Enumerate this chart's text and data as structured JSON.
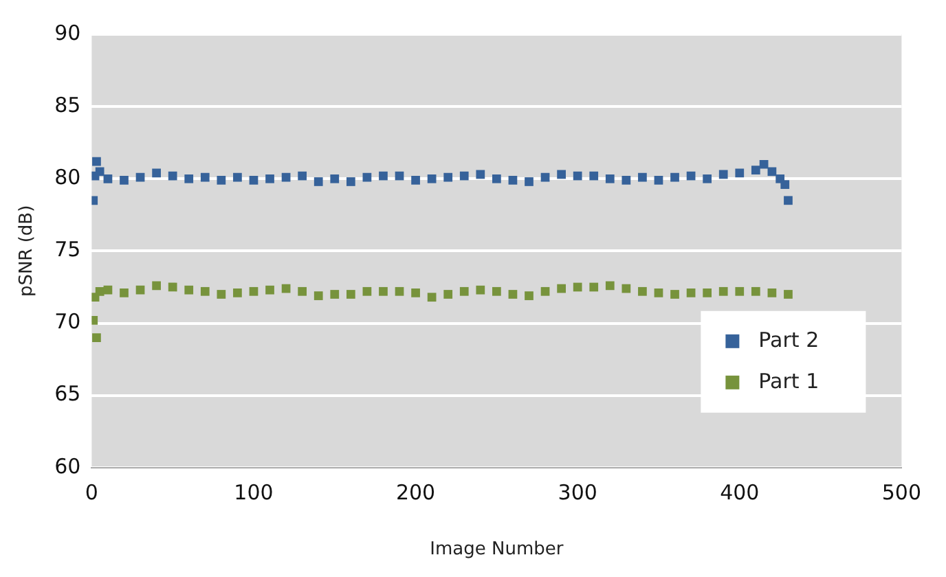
{
  "chart_data": {
    "type": "scatter",
    "xlabel": "Image Number",
    "ylabel": "pSNR (dB)",
    "xlim": [
      0,
      500
    ],
    "xticks": [
      0,
      100,
      200,
      300,
      400,
      500
    ],
    "ylim": [
      60,
      90
    ],
    "yticks": [
      60,
      65,
      70,
      75,
      80,
      85,
      90
    ],
    "grid": "y",
    "legend": "bottom right",
    "marker": "square",
    "series": [
      {
        "name": "Part 2",
        "color": "#36629a",
        "x": [
          1,
          2,
          3,
          5,
          10,
          20,
          30,
          40,
          50,
          60,
          70,
          80,
          90,
          100,
          110,
          120,
          130,
          140,
          150,
          160,
          170,
          180,
          190,
          200,
          210,
          220,
          230,
          240,
          250,
          260,
          270,
          280,
          290,
          300,
          310,
          320,
          330,
          340,
          350,
          360,
          370,
          380,
          390,
          400,
          410,
          415,
          420,
          425,
          428,
          430
        ],
        "values": [
          78.5,
          80.2,
          81.2,
          80.5,
          80.0,
          79.9,
          80.1,
          80.4,
          80.2,
          80.0,
          80.1,
          79.9,
          80.1,
          79.9,
          80.0,
          80.1,
          80.2,
          79.8,
          80.0,
          79.8,
          80.1,
          80.2,
          80.2,
          79.9,
          80.0,
          80.1,
          80.2,
          80.3,
          80.0,
          79.9,
          79.8,
          80.1,
          80.3,
          80.2,
          80.2,
          80.0,
          79.9,
          80.1,
          79.9,
          80.1,
          80.2,
          80.0,
          80.3,
          80.4,
          80.6,
          81.0,
          80.5,
          80.0,
          79.6,
          78.5
        ]
      },
      {
        "name": "Part 1",
        "color": "#77933c",
        "x": [
          1,
          2,
          3,
          5,
          10,
          20,
          30,
          40,
          50,
          60,
          70,
          80,
          90,
          100,
          110,
          120,
          130,
          140,
          150,
          160,
          170,
          180,
          190,
          200,
          210,
          220,
          230,
          240,
          250,
          260,
          270,
          280,
          290,
          300,
          310,
          320,
          330,
          340,
          350,
          360,
          370,
          380,
          390,
          400,
          410,
          420,
          430
        ],
        "values": [
          70.2,
          71.8,
          69.0,
          72.2,
          72.3,
          72.1,
          72.3,
          72.6,
          72.5,
          72.3,
          72.2,
          72.0,
          72.1,
          72.2,
          72.3,
          72.4,
          72.2,
          71.9,
          72.0,
          72.0,
          72.2,
          72.2,
          72.2,
          72.1,
          71.8,
          72.0,
          72.2,
          72.3,
          72.2,
          72.0,
          71.9,
          72.2,
          72.4,
          72.5,
          72.5,
          72.6,
          72.4,
          72.2,
          72.1,
          72.0,
          72.1,
          72.1,
          72.2,
          72.2,
          72.2,
          72.1,
          72.0
        ]
      }
    ]
  }
}
